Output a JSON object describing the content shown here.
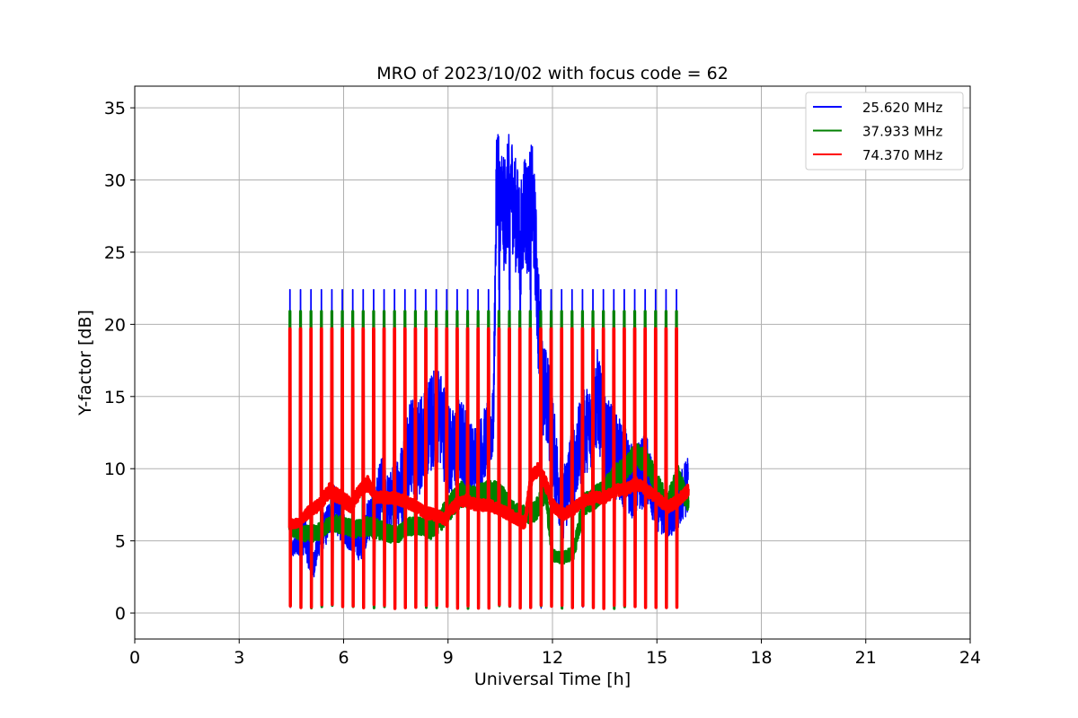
{
  "chart_data": {
    "type": "line",
    "title": "MRO of 2023/10/02 with focus code = 62",
    "xlabel": "Universal Time [h]",
    "ylabel": "Y-factor [dB]",
    "xlim": [
      0,
      24
    ],
    "ylim": [
      -1.8,
      36.5
    ],
    "xticks": [
      0,
      3,
      6,
      9,
      12,
      15,
      18,
      21,
      24
    ],
    "yticks": [
      0,
      5,
      10,
      15,
      20,
      25,
      30,
      35
    ],
    "grid": true,
    "legend_position": "top-right",
    "calibration": {
      "start": 4.45,
      "end": 15.75,
      "interval": 0.3,
      "pulse_levels": [
        22.4,
        20.9,
        19.7
      ],
      "floor_level": 0.3
    },
    "series": [
      {
        "name": "25.620 MHz",
        "color": "#0000ff",
        "x": [
          4.45,
          4.7,
          4.9,
          5.1,
          5.3,
          5.5,
          5.7,
          5.9,
          6.1,
          6.3,
          6.5,
          6.7,
          6.9,
          7.1,
          7.3,
          7.5,
          7.7,
          7.9,
          8.1,
          8.3,
          8.5,
          8.7,
          8.9,
          9.1,
          9.3,
          9.5,
          9.7,
          9.9,
          10.1,
          10.3,
          10.4,
          10.5,
          10.6,
          10.7,
          10.8,
          10.9,
          11.0,
          11.1,
          11.2,
          11.3,
          11.4,
          11.5,
          11.6,
          11.7,
          11.9,
          12.1,
          12.3,
          12.5,
          12.7,
          12.9,
          13.1,
          13.3,
          13.5,
          13.7,
          13.9,
          14.1,
          14.3,
          14.5,
          14.7,
          14.9,
          15.1,
          15.3,
          15.5,
          15.7,
          15.9
        ],
        "values": [
          4.3,
          4.8,
          5.5,
          3.0,
          5.0,
          6.0,
          7.5,
          6.5,
          5.5,
          5.0,
          4.5,
          6.5,
          7.0,
          8.5,
          7.5,
          8.5,
          9.0,
          12.0,
          11.0,
          12.5,
          13.0,
          14.0,
          12.5,
          11.0,
          12.0,
          11.5,
          10.5,
          11.0,
          12.0,
          13.0,
          31.0,
          29.0,
          27.5,
          28.5,
          30.0,
          28.0,
          27.0,
          26.0,
          28.5,
          27.0,
          29.0,
          26.0,
          20.0,
          16.0,
          14.0,
          10.0,
          7.5,
          9.5,
          11.0,
          12.5,
          13.0,
          15.0,
          12.0,
          11.5,
          10.5,
          10.0,
          9.0,
          9.5,
          10.0,
          8.0,
          7.0,
          6.5,
          7.0,
          8.0,
          9.0
        ],
        "noise": [
          0.6,
          0.8,
          1.5,
          1.0,
          1.0,
          1.3,
          1.5,
          1.5,
          1.0,
          1.0,
          1.0,
          1.5,
          2.0,
          2.5,
          2.0,
          2.5,
          3.0,
          3.5,
          3.5,
          3.5,
          3.5,
          3.5,
          3.5,
          3.0,
          3.0,
          3.0,
          2.5,
          2.5,
          2.5,
          2.5,
          4.0,
          4.0,
          4.0,
          4.0,
          4.0,
          4.0,
          4.0,
          4.0,
          4.0,
          4.0,
          4.0,
          4.0,
          4.0,
          3.5,
          3.5,
          3.0,
          2.5,
          3.0,
          3.0,
          3.0,
          3.0,
          3.5,
          3.0,
          3.0,
          3.0,
          3.0,
          2.5,
          2.5,
          2.5,
          2.0,
          1.5,
          1.5,
          1.5,
          2.0,
          2.0
        ],
        "line_width": 1.5
      },
      {
        "name": "37.933 MHz",
        "color": "#008000",
        "x": [
          4.45,
          4.8,
          5.2,
          5.5,
          5.8,
          6.1,
          6.4,
          6.7,
          7.0,
          7.3,
          7.6,
          7.9,
          8.2,
          8.5,
          8.8,
          9.1,
          9.4,
          9.7,
          10.0,
          10.3,
          10.6,
          10.9,
          11.2,
          11.5,
          11.8,
          12.0,
          12.3,
          12.6,
          12.9,
          13.2,
          13.5,
          13.8,
          14.1,
          14.4,
          14.7,
          15.0,
          15.3,
          15.6,
          15.9
        ],
        "values": [
          5.8,
          5.5,
          5.5,
          6.0,
          6.2,
          6.0,
          5.8,
          6.0,
          5.8,
          5.5,
          5.5,
          6.0,
          6.0,
          5.8,
          6.5,
          7.5,
          8.3,
          8.0,
          8.2,
          8.5,
          8.0,
          7.0,
          6.8,
          7.0,
          8.5,
          4.0,
          3.8,
          4.2,
          7.5,
          8.0,
          8.5,
          9.5,
          10.0,
          11.0,
          10.5,
          9.0,
          7.5,
          9.5,
          7.5
        ],
        "noise": [
          0.4,
          0.5,
          0.6,
          0.5,
          0.6,
          0.6,
          0.6,
          0.7,
          0.7,
          0.6,
          0.6,
          0.6,
          0.6,
          0.7,
          0.8,
          0.9,
          0.9,
          0.8,
          0.8,
          0.8,
          0.7,
          0.6,
          0.6,
          0.7,
          0.7,
          0.4,
          0.4,
          0.5,
          0.8,
          0.8,
          0.8,
          0.8,
          0.8,
          0.8,
          0.8,
          0.8,
          0.7,
          0.8,
          0.7
        ],
        "line_width": 3
      },
      {
        "name": "74.370 MHz",
        "color": "#ff0000",
        "x": [
          4.45,
          4.7,
          5.0,
          5.3,
          5.6,
          5.9,
          6.2,
          6.5,
          6.7,
          6.9,
          7.1,
          7.4,
          7.7,
          8.0,
          8.3,
          8.6,
          8.9,
          9.2,
          9.5,
          9.8,
          10.1,
          10.4,
          10.7,
          11.0,
          11.2,
          11.4,
          11.6,
          11.8,
          12.0,
          12.3,
          12.6,
          12.9,
          13.2,
          13.5,
          13.8,
          14.1,
          14.4,
          14.7,
          15.0,
          15.3,
          15.6,
          15.9
        ],
        "values": [
          6.2,
          6.2,
          7.0,
          7.5,
          8.5,
          8.0,
          7.5,
          8.5,
          9.0,
          8.0,
          8.0,
          8.0,
          7.8,
          7.5,
          7.0,
          6.8,
          6.5,
          7.5,
          7.8,
          7.5,
          7.5,
          7.3,
          6.9,
          6.5,
          6.2,
          9.5,
          10.0,
          9.0,
          7.5,
          6.8,
          7.2,
          7.8,
          8.0,
          8.0,
          8.5,
          8.5,
          9.0,
          8.5,
          8.0,
          7.3,
          7.8,
          8.5
        ],
        "noise": [
          0.3,
          0.3,
          0.4,
          0.4,
          0.5,
          0.5,
          0.5,
          0.5,
          0.5,
          0.4,
          0.4,
          0.4,
          0.4,
          0.4,
          0.4,
          0.4,
          0.4,
          0.4,
          0.4,
          0.4,
          0.4,
          0.4,
          0.4,
          0.4,
          0.4,
          0.5,
          0.5,
          0.5,
          0.4,
          0.4,
          0.4,
          0.4,
          0.4,
          0.4,
          0.4,
          0.4,
          0.4,
          0.4,
          0.4,
          0.4,
          0.4,
          0.4
        ],
        "line_width": 3.5
      }
    ]
  }
}
